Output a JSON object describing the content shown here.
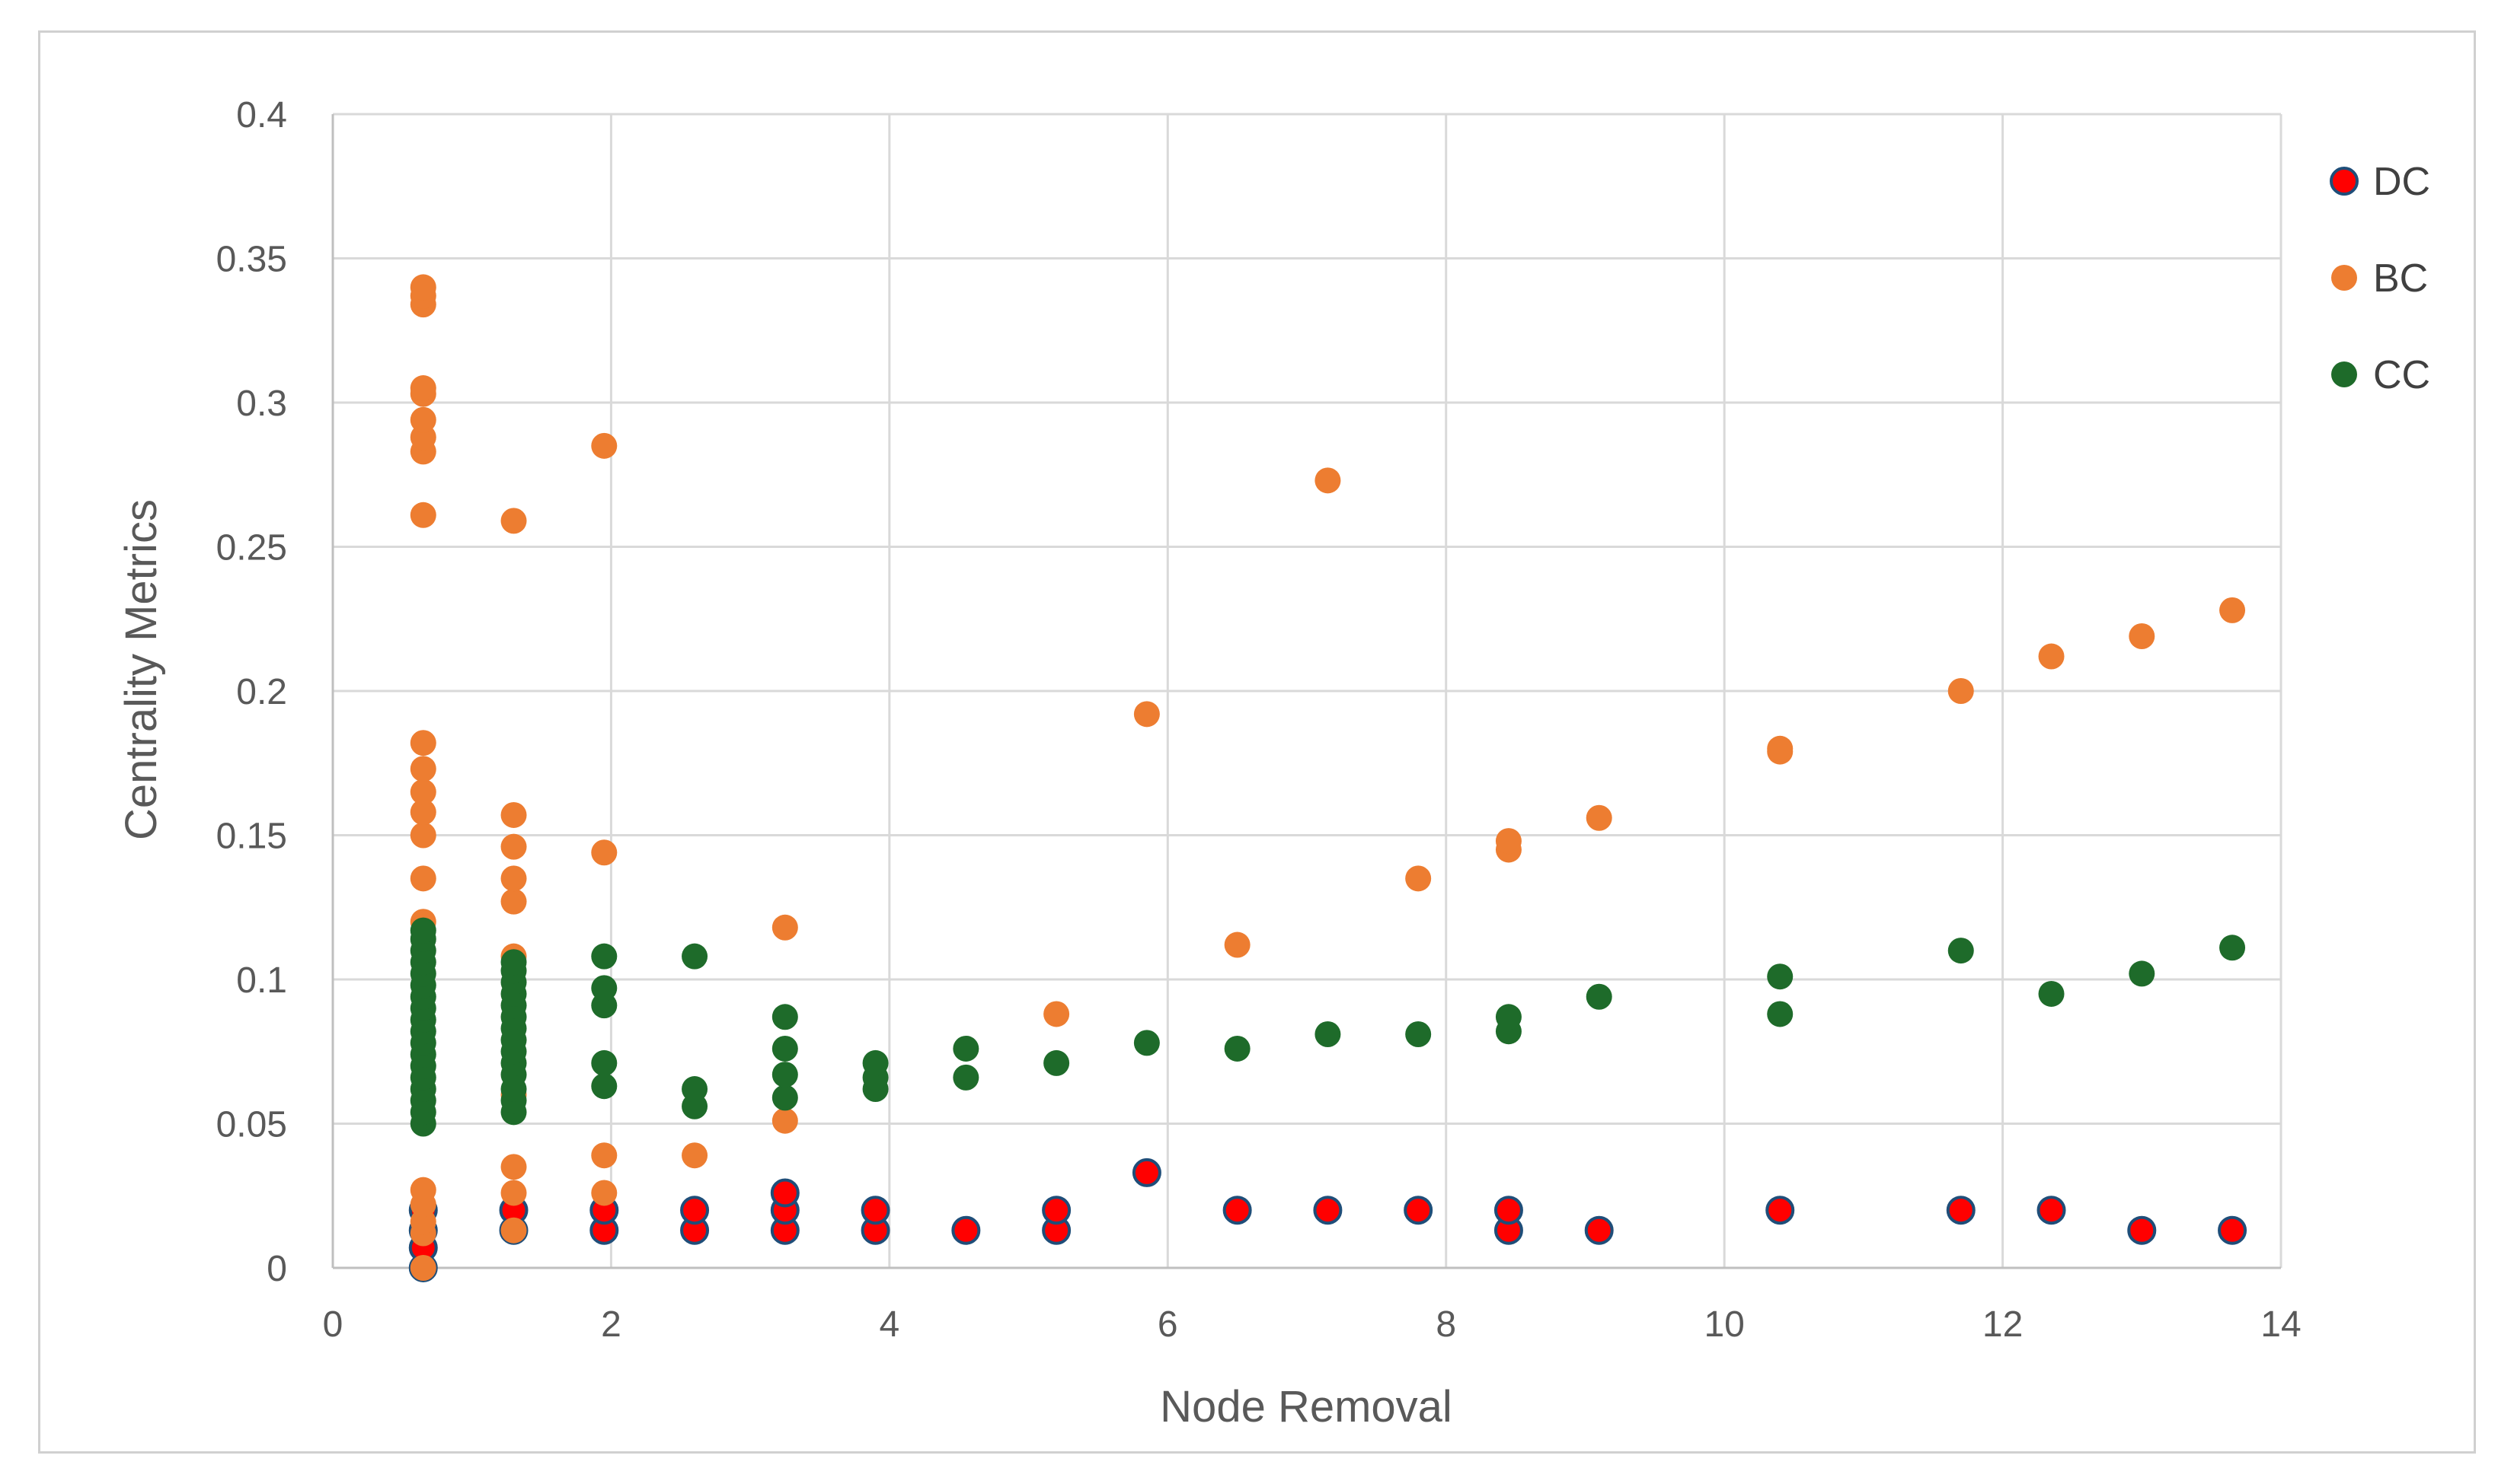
{
  "chart_data": {
    "type": "scatter",
    "title": "",
    "xlabel": "Node Removal",
    "ylabel": "Centrality Metrics",
    "xlim": [
      0,
      14
    ],
    "ylim": [
      0,
      0.4
    ],
    "xticks": [
      0,
      2,
      4,
      6,
      8,
      10,
      12,
      14
    ],
    "yticks": [
      0,
      0.05,
      0.1,
      0.15,
      0.2,
      0.25,
      0.3,
      0.35,
      0.4
    ],
    "ytick_labels": [
      "0",
      "0.05",
      "0.1",
      "0.15",
      "0.2",
      "0.25",
      "0.3",
      "0.35",
      "0.4"
    ],
    "xtick_labels": [
      "0",
      "2",
      "4",
      "6",
      "8",
      "10",
      "12",
      "14"
    ],
    "grid": true,
    "legend_position": "right",
    "series": [
      {
        "name": "DC",
        "fill": "#ff0000",
        "stroke": "#1f4e79",
        "points": [
          [
            0.65,
            0.0
          ],
          [
            0.65,
            0.007
          ],
          [
            0.65,
            0.013
          ],
          [
            0.65,
            0.02
          ],
          [
            1.3,
            0.013
          ],
          [
            1.3,
            0.02
          ],
          [
            1.95,
            0.013
          ],
          [
            1.95,
            0.02
          ],
          [
            2.6,
            0.013
          ],
          [
            2.6,
            0.02
          ],
          [
            3.25,
            0.013
          ],
          [
            3.25,
            0.02
          ],
          [
            3.25,
            0.026
          ],
          [
            3.9,
            0.013
          ],
          [
            3.9,
            0.02
          ],
          [
            4.55,
            0.013
          ],
          [
            5.2,
            0.013
          ],
          [
            5.2,
            0.02
          ],
          [
            5.85,
            0.033
          ],
          [
            6.5,
            0.02
          ],
          [
            7.15,
            0.02
          ],
          [
            7.8,
            0.02
          ],
          [
            8.45,
            0.013
          ],
          [
            8.45,
            0.02
          ],
          [
            9.1,
            0.013
          ],
          [
            10.4,
            0.02
          ],
          [
            11.7,
            0.02
          ],
          [
            12.35,
            0.02
          ],
          [
            13.0,
            0.013
          ],
          [
            13.65,
            0.013
          ]
        ]
      },
      {
        "name": "BC",
        "fill": "#ed7d31",
        "stroke": "#ed7d31",
        "points": [
          [
            0.65,
            0.0
          ],
          [
            0.65,
            0.012
          ],
          [
            0.65,
            0.016
          ],
          [
            0.65,
            0.022
          ],
          [
            0.65,
            0.027
          ],
          [
            0.65,
            0.12
          ],
          [
            0.65,
            0.135
          ],
          [
            0.65,
            0.15
          ],
          [
            0.65,
            0.158
          ],
          [
            0.65,
            0.165
          ],
          [
            0.65,
            0.173
          ],
          [
            0.65,
            0.182
          ],
          [
            0.65,
            0.261
          ],
          [
            0.65,
            0.283
          ],
          [
            0.65,
            0.288
          ],
          [
            0.65,
            0.294
          ],
          [
            0.65,
            0.303
          ],
          [
            0.65,
            0.305
          ],
          [
            0.65,
            0.334
          ],
          [
            0.65,
            0.337
          ],
          [
            0.65,
            0.34
          ],
          [
            1.3,
            0.013
          ],
          [
            1.3,
            0.026
          ],
          [
            1.3,
            0.035
          ],
          [
            1.3,
            0.06
          ],
          [
            1.3,
            0.108
          ],
          [
            1.3,
            0.127
          ],
          [
            1.3,
            0.135
          ],
          [
            1.3,
            0.146
          ],
          [
            1.3,
            0.157
          ],
          [
            1.3,
            0.259
          ],
          [
            1.95,
            0.026
          ],
          [
            1.95,
            0.039
          ],
          [
            1.95,
            0.144
          ],
          [
            1.95,
            0.285
          ],
          [
            2.6,
            0.039
          ],
          [
            3.25,
            0.051
          ],
          [
            3.25,
            0.118
          ],
          [
            5.2,
            0.088
          ],
          [
            5.85,
            0.192
          ],
          [
            6.5,
            0.112
          ],
          [
            7.15,
            0.273
          ],
          [
            7.8,
            0.135
          ],
          [
            8.45,
            0.145
          ],
          [
            8.45,
            0.148
          ],
          [
            9.1,
            0.156
          ],
          [
            10.4,
            0.179
          ],
          [
            10.4,
            0.18
          ],
          [
            11.7,
            0.2
          ],
          [
            12.35,
            0.212
          ],
          [
            13.0,
            0.219
          ],
          [
            13.65,
            0.228
          ]
        ]
      },
      {
        "name": "CC",
        "fill": "#1e6b2a",
        "stroke": "#1e6b2a",
        "points": [
          [
            0.65,
            0.05
          ],
          [
            0.65,
            0.054
          ],
          [
            0.65,
            0.058
          ],
          [
            0.65,
            0.062
          ],
          [
            0.65,
            0.066
          ],
          [
            0.65,
            0.07
          ],
          [
            0.65,
            0.074
          ],
          [
            0.65,
            0.078
          ],
          [
            0.65,
            0.082
          ],
          [
            0.65,
            0.086
          ],
          [
            0.65,
            0.09
          ],
          [
            0.65,
            0.094
          ],
          [
            0.65,
            0.098
          ],
          [
            0.65,
            0.102
          ],
          [
            0.65,
            0.106
          ],
          [
            0.65,
            0.11
          ],
          [
            0.65,
            0.114
          ],
          [
            0.65,
            0.117
          ],
          [
            1.3,
            0.054
          ],
          [
            1.3,
            0.058
          ],
          [
            1.3,
            0.062
          ],
          [
            1.3,
            0.067
          ],
          [
            1.3,
            0.071
          ],
          [
            1.3,
            0.075
          ],
          [
            1.3,
            0.079
          ],
          [
            1.3,
            0.083
          ],
          [
            1.3,
            0.087
          ],
          [
            1.3,
            0.091
          ],
          [
            1.3,
            0.095
          ],
          [
            1.3,
            0.099
          ],
          [
            1.3,
            0.103
          ],
          [
            1.3,
            0.106
          ],
          [
            1.95,
            0.063
          ],
          [
            1.95,
            0.071
          ],
          [
            1.95,
            0.091
          ],
          [
            1.95,
            0.097
          ],
          [
            1.95,
            0.108
          ],
          [
            2.6,
            0.056
          ],
          [
            2.6,
            0.062
          ],
          [
            2.6,
            0.108
          ],
          [
            3.25,
            0.059
          ],
          [
            3.25,
            0.067
          ],
          [
            3.25,
            0.076
          ],
          [
            3.25,
            0.087
          ],
          [
            3.9,
            0.062
          ],
          [
            3.9,
            0.066
          ],
          [
            3.9,
            0.071
          ],
          [
            4.55,
            0.066
          ],
          [
            4.55,
            0.076
          ],
          [
            5.2,
            0.071
          ],
          [
            5.85,
            0.078
          ],
          [
            6.5,
            0.076
          ],
          [
            7.15,
            0.081
          ],
          [
            7.8,
            0.081
          ],
          [
            8.45,
            0.082
          ],
          [
            8.45,
            0.087
          ],
          [
            9.1,
            0.094
          ],
          [
            10.4,
            0.088
          ],
          [
            10.4,
            0.101
          ],
          [
            11.7,
            0.11
          ],
          [
            12.35,
            0.095
          ],
          [
            13.0,
            0.102
          ],
          [
            13.65,
            0.111
          ]
        ]
      }
    ]
  }
}
